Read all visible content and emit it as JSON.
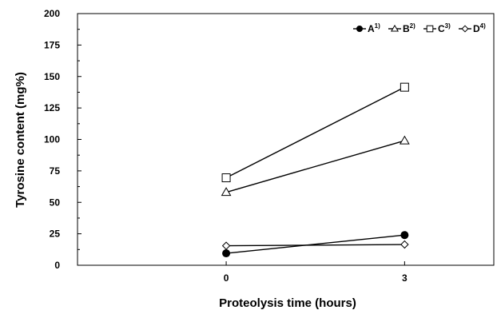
{
  "chart_data": {
    "type": "line",
    "x": [
      0,
      3
    ],
    "x_tick_labels": [
      "0",
      "3"
    ],
    "y_tick_labels": [
      "0",
      "25",
      "50",
      "75",
      "100",
      "125",
      "150",
      "175",
      "200"
    ],
    "xlabel": "Proteolysis time (hours)",
    "ylabel": "Tyrosine content (mg%)",
    "xlim": [
      -2.5,
      4.5
    ],
    "ylim": [
      0,
      200
    ],
    "grid": false,
    "legend_position": "top-right",
    "series": [
      {
        "name": "A",
        "sup": "1)",
        "marker": "circle-filled",
        "values": [
          9.5,
          24
        ]
      },
      {
        "name": "B",
        "sup": "2)",
        "marker": "triangle-open",
        "values": [
          58,
          99
        ]
      },
      {
        "name": "C",
        "sup": "3)",
        "marker": "square-open",
        "values": [
          69.5,
          141.5
        ]
      },
      {
        "name": "D",
        "sup": "4)",
        "marker": "diamond-open",
        "values": [
          15.5,
          16.5
        ]
      }
    ]
  }
}
